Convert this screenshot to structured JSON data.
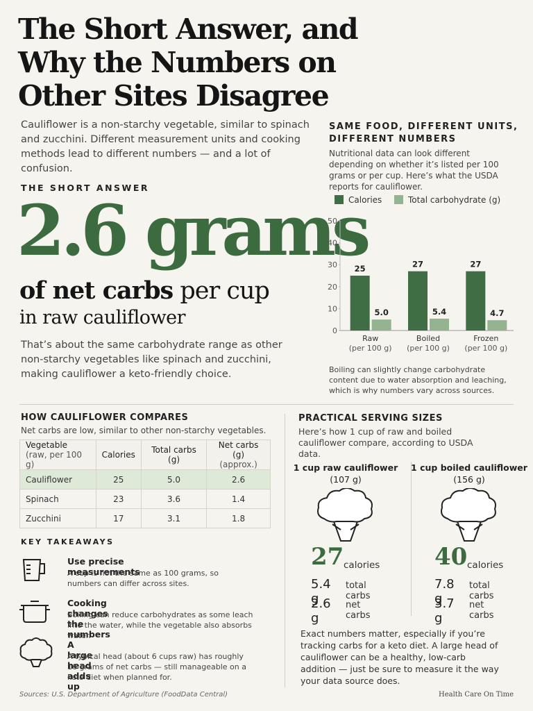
{
  "title": [
    "The Short Answer, and",
    "Why the Numbers on",
    "Other Sites Disagree"
  ],
  "intro": "Cauliflower is a non-starchy vegetable, similar to spinach and zucchini. Different measurement units and cooking methods lead to different numbers — and a lot of confusion.",
  "short_answer": {
    "label": "THE SHORT ANSWER",
    "headline": "2.6 grams",
    "line2_bold": "of net carbs",
    "line2_rest": "per cup",
    "line3": "in raw cauliflower",
    "body": "That’s about the same carbohydrate range as other non-starchy vegetables like spinach and zucchini, making cauliflower a keto-friendly choice."
  },
  "chart_data": {
    "type": "bar",
    "title": [
      "SAME FOOD, DIFFERENT UNITS,",
      "DIFFERENT NUMBERS"
    ],
    "subtitle": "Nutritional data can look different depending on whether it’s listed per 100 grams or per cup. Here’s what the USDA reports for cauliflower.",
    "categories": [
      "Raw",
      "Boiled",
      "Frozen"
    ],
    "category_units": [
      "(per 100 g)",
      "(per 100 g)",
      "(per 100 g)"
    ],
    "series": [
      {
        "name": "Calories",
        "color": "#3f6e45",
        "values": [
          25,
          27,
          27
        ]
      },
      {
        "name": "Total carbohydrate (g)",
        "color": "#94b38f",
        "values": [
          5.0,
          5.4,
          4.7
        ],
        "value_labels": [
          "5.0",
          "5.4",
          "4.7"
        ]
      }
    ],
    "ylim": [
      0,
      50
    ],
    "yticks": [
      0,
      10,
      20,
      30,
      40,
      50
    ],
    "grid": false,
    "legend": "top",
    "note": "Boiling can slightly change carbohydrate content due to water absorption and leaching, which is why numbers vary across sources."
  },
  "compare": {
    "title": "HOW CAULIFLOWER COMPARES",
    "subtitle": "Net carbs are low, similar to other non-starchy vegetables.",
    "header": [
      [
        "Vegetable",
        "(raw, per 100 g)"
      ],
      [
        "Calories"
      ],
      [
        "Total carbs (g)"
      ],
      [
        "Net carbs (g)",
        "(approx.)"
      ]
    ],
    "rows": [
      [
        "Cauliflower",
        "25",
        "5.0",
        "2.6"
      ],
      [
        "Spinach",
        "23",
        "3.6",
        "1.4"
      ],
      [
        "Zucchini",
        "17",
        "3.1",
        "1.8"
      ]
    ]
  },
  "takeaways": {
    "title": "KEY TAKEAWAYS",
    "items": [
      {
        "title": "Use precise measurements",
        "text": "A cup is not the same as 100 grams, so numbers can differ across sites."
      },
      {
        "title": "Cooking changes the numbers",
        "text": "Boiling can reduce carbohydrates as some leach into the water, while the vegetable also absorbs water."
      },
      {
        "title": "A large head adds up",
        "text": "A typical head (about 6 cups raw) has roughly 16 grams of net carbs — still manageable on a keto diet when planned for."
      }
    ]
  },
  "servings": {
    "title": "PRACTICAL SERVING SIZES",
    "subtitle": "Here’s how 1 cup of raw and boiled cauliflower compare, according to USDA data.",
    "items": [
      {
        "title": "1 cup raw cauliflower",
        "weight": "(107 g)",
        "calories": "27",
        "calories_label": "calories",
        "total_carbs": "5.4 g",
        "total_label": "total carbs",
        "net_carbs": "2.6 g",
        "net_label": "net carbs"
      },
      {
        "title": "1 cup boiled cauliflower",
        "weight": "(156 g)",
        "calories": "40",
        "calories_label": "calories",
        "total_carbs": "7.8 g",
        "total_label": "total carbs",
        "net_carbs": "3.7 g",
        "net_label": "net carbs"
      }
    ],
    "closing": "Exact numbers matter, especially if you’re tracking carbs for a keto diet. A large head of cauliflower can be a healthy, low-carb addition — just be sure to measure it the way your data source does."
  },
  "sources": "Sources: U.S. Department of Agriculture (FoodData Central)",
  "brand": "Health Care On Time"
}
